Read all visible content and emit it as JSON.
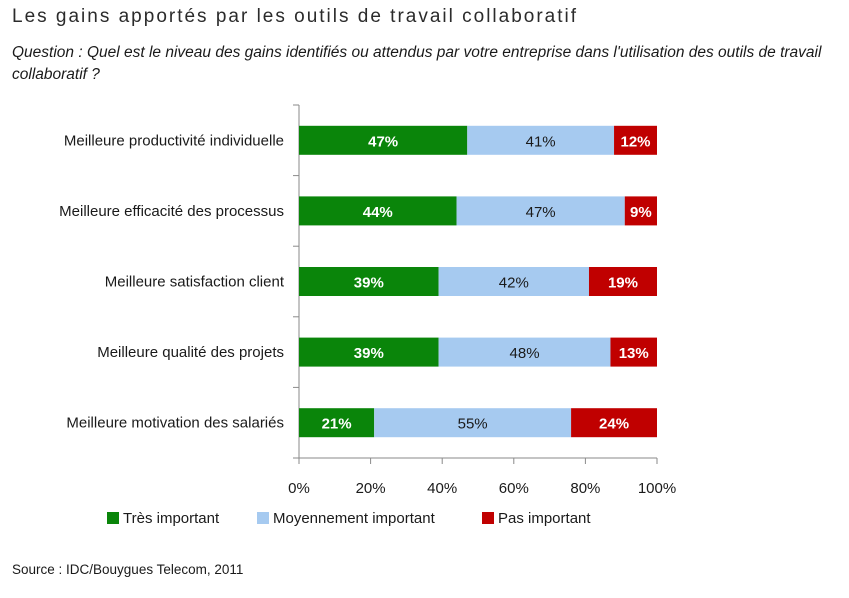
{
  "header": {
    "title": "Les gains apportés par les outils de travail collaboratif",
    "question": "Question : Quel est le niveau des gains identifiés ou attendus par votre entreprise dans l'utilisation des outils de travail collaboratif ?"
  },
  "source": "Source : IDC/Bouygues Telecom, 2011",
  "chart_data": {
    "type": "bar",
    "orientation": "horizontal",
    "stacked": true,
    "categories": [
      "Meilleure productivité individuelle",
      "Meilleure efficacité des processus",
      "Meilleure satisfaction client",
      "Meilleure qualité des projets",
      "Meilleure motivation des salariés"
    ],
    "series": [
      {
        "name": "Très important",
        "color": "#0a850a",
        "label_color": "#ffffff",
        "values": [
          47,
          44,
          39,
          39,
          21
        ],
        "labels": [
          "47%",
          "44%",
          "39%",
          "39%",
          "21%"
        ]
      },
      {
        "name": "Moyennement important",
        "color": "#a6caf0",
        "label_color": "#1a1a1a",
        "values": [
          41,
          47,
          42,
          48,
          55
        ],
        "labels": [
          "41%",
          "47%",
          "42%",
          "48%",
          "55%"
        ]
      },
      {
        "name": "Pas important",
        "color": "#c00000",
        "label_color": "#ffffff",
        "values": [
          12,
          9,
          19,
          13,
          24
        ],
        "labels": [
          "12%",
          "9%",
          "19%",
          "13%",
          "24%"
        ]
      }
    ],
    "xlim": [
      0,
      100
    ],
    "xticks": [
      0,
      20,
      40,
      60,
      80,
      100
    ],
    "xtick_labels": [
      "0%",
      "20%",
      "40%",
      "60%",
      "80%",
      "100%"
    ],
    "legend_position": "bottom",
    "grid": false
  }
}
